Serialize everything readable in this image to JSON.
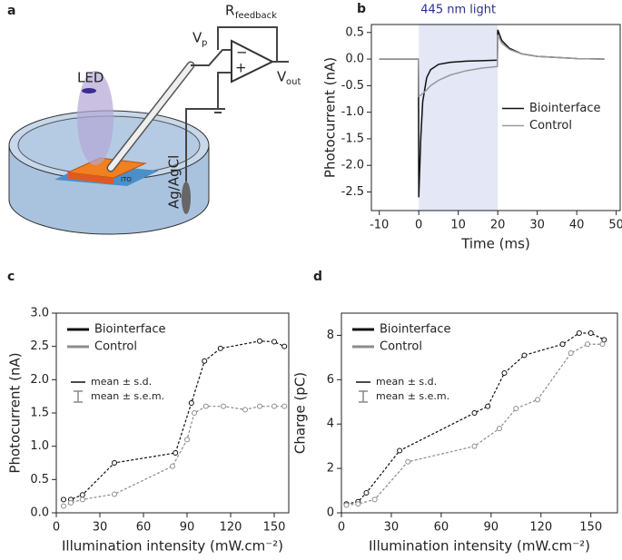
{
  "schematic": {
    "panel": "a",
    "labels": {
      "led": "LED",
      "r": "R",
      "r_sub": "feedback",
      "vp": "V",
      "vp_sub": "p",
      "vout": "V",
      "vout_sub": "out",
      "electrode": "Ag/AgCl",
      "substrate": "ITO",
      "minus": "−",
      "plus": "+"
    }
  },
  "chart_data": [
    {
      "type": "line",
      "panel": "b",
      "annotation": "445 nm light",
      "shade": [
        0,
        20
      ],
      "shade_color": "#e3e7f6",
      "annotation_color": "#2b2f8a",
      "xlabel": "Time (ms)",
      "ylabel": "Photocurrent (nA)",
      "xlim": [
        -12,
        51
      ],
      "xticks": [
        -10,
        0,
        10,
        20,
        30,
        40,
        50
      ],
      "ylim": [
        -2.85,
        0.65
      ],
      "yticks": [
        0.5,
        {
          "value": 0,
          "label": "0.0"
        },
        -0.5,
        {
          "value": -1,
          "label": "-1.0"
        },
        -1.5,
        {
          "value": -2,
          "label": "-2.0"
        },
        -2.5
      ],
      "legend": "center right",
      "dashed": false,
      "markers": false,
      "x": [
        -10,
        -5,
        -0.1,
        0,
        0.5,
        1,
        2,
        3,
        5,
        8,
        12,
        16,
        19.9,
        20,
        21,
        23,
        26,
        30,
        40,
        47
      ],
      "series": [
        {
          "name": "Biointerface",
          "color": "#111111",
          "values": [
            0,
            0,
            0,
            -2.6,
            -1.5,
            -0.8,
            -0.35,
            -0.2,
            -0.1,
            -0.06,
            -0.04,
            -0.03,
            -0.02,
            0.55,
            0.35,
            0.2,
            0.1,
            0.05,
            0.01,
            0
          ]
        },
        {
          "name": "Control",
          "color": "#999999",
          "values": [
            0,
            0,
            0,
            -0.7,
            -0.68,
            -0.65,
            -0.58,
            -0.5,
            -0.4,
            -0.3,
            -0.22,
            -0.17,
            -0.14,
            0.45,
            0.3,
            0.18,
            0.1,
            0.05,
            0.01,
            0
          ]
        }
      ]
    },
    {
      "type": "line",
      "panel": "c",
      "xlabel": "Illumination intensity (mW.cm⁻²)",
      "ylabel": "Photocurrent (nA)",
      "xlim": [
        0,
        160
      ],
      "xticks": [
        0,
        30,
        60,
        90,
        120,
        150
      ],
      "ylim": [
        0,
        3
      ],
      "yticks": [
        {
          "value": 0,
          "label": "0.0"
        },
        0.5,
        {
          "value": 1,
          "label": "1.0"
        },
        1.5,
        {
          "value": 2,
          "label": "2.0"
        },
        2.5,
        {
          "value": 3,
          "label": "3.0"
        }
      ],
      "legend": "upper left",
      "dashed": true,
      "markers": true,
      "stats_legend": [
        "mean ± s.d.",
        "mean ± s.e.m."
      ],
      "series": [
        {
          "name": "Biointerface",
          "color": "#111111",
          "x": [
            5,
            10,
            18,
            40,
            82,
            93,
            102,
            113,
            140,
            150,
            157
          ],
          "values": [
            0.2,
            0.2,
            0.27,
            0.75,
            0.9,
            1.65,
            2.28,
            2.47,
            2.58,
            2.57,
            2.5
          ]
        },
        {
          "name": "Control",
          "color": "#8c8c8c",
          "x": [
            5,
            10,
            18,
            40,
            80,
            90,
            95,
            103,
            115,
            130,
            140,
            150,
            157
          ],
          "values": [
            0.1,
            0.15,
            0.2,
            0.28,
            0.7,
            1.1,
            1.5,
            1.6,
            1.6,
            1.55,
            1.6,
            1.6,
            1.6
          ]
        }
      ]
    },
    {
      "type": "line",
      "panel": "d",
      "xlabel": "Illumination intensity (mW.cm⁻²)",
      "ylabel": "Charge (pC)",
      "xlim": [
        0,
        166
      ],
      "xticks": [
        0,
        30,
        60,
        90,
        120,
        150
      ],
      "ylim": [
        0,
        9
      ],
      "yticks": [
        0,
        2,
        4,
        6,
        8
      ],
      "legend": "upper left",
      "dashed": true,
      "markers": true,
      "stats_legend": [
        "mean ± s.d.",
        "mean ± s.e.m."
      ],
      "series": [
        {
          "name": "Biointerface",
          "color": "#111111",
          "x": [
            3,
            10,
            15,
            35,
            80,
            88,
            98,
            110,
            133,
            143,
            150,
            158
          ],
          "values": [
            0.4,
            0.5,
            0.9,
            2.8,
            4.5,
            4.8,
            6.3,
            7.1,
            7.6,
            8.1,
            8.1,
            7.8
          ]
        },
        {
          "name": "Control",
          "color": "#8c8c8c",
          "x": [
            3,
            10,
            20,
            40,
            80,
            95,
            105,
            118,
            138,
            148,
            157
          ],
          "values": [
            0.35,
            0.4,
            0.6,
            2.3,
            3.0,
            3.8,
            4.7,
            5.1,
            7.2,
            7.6,
            7.6
          ]
        }
      ]
    }
  ]
}
